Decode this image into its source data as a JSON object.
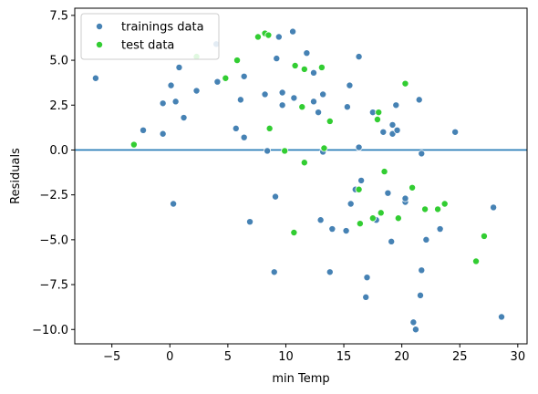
{
  "chart_data": {
    "type": "scatter",
    "xlabel": "min Temp",
    "ylabel": "Residuals",
    "xlim": [
      -8.2,
      30.8
    ],
    "ylim": [
      -10.8,
      7.9
    ],
    "xticks": [
      -5,
      0,
      5,
      10,
      15,
      20,
      25,
      30
    ],
    "yticks": [
      -10.0,
      -7.5,
      -5.0,
      -2.5,
      0.0,
      2.5,
      5.0,
      7.5
    ],
    "ytick_labels": [
      "−10.0",
      "−7.5",
      "−5.0",
      "−2.5",
      "0.0",
      "2.5",
      "5.0",
      "7.5"
    ],
    "xtick_labels": [
      "−5",
      "0",
      "5",
      "10",
      "15",
      "20",
      "25",
      "30"
    ],
    "reference_line": {
      "y": 0,
      "color": "#1f77b4"
    },
    "legend_position": "upper-left",
    "series": [
      {
        "name": "trainings data",
        "color": "#4682b4",
        "points": [
          [
            -6.4,
            4.0
          ],
          [
            -2.3,
            1.1
          ],
          [
            -0.6,
            2.6
          ],
          [
            -0.6,
            0.9
          ],
          [
            0.1,
            3.6
          ],
          [
            0.3,
            -3.0
          ],
          [
            0.5,
            2.7
          ],
          [
            0.8,
            4.6
          ],
          [
            1.2,
            1.8
          ],
          [
            2.3,
            3.3
          ],
          [
            4.0,
            5.9
          ],
          [
            4.1,
            3.8
          ],
          [
            5.7,
            1.2
          ],
          [
            6.1,
            2.8
          ],
          [
            6.4,
            0.7
          ],
          [
            6.4,
            4.1
          ],
          [
            6.9,
            -4.0
          ],
          [
            8.2,
            3.1
          ],
          [
            8.4,
            -0.05
          ],
          [
            9.0,
            -6.8
          ],
          [
            9.1,
            -2.6
          ],
          [
            9.2,
            5.1
          ],
          [
            9.4,
            6.3
          ],
          [
            9.7,
            3.2
          ],
          [
            9.7,
            2.5
          ],
          [
            10.6,
            6.6
          ],
          [
            10.7,
            2.9
          ],
          [
            11.8,
            5.4
          ],
          [
            12.4,
            4.3
          ],
          [
            12.4,
            2.7
          ],
          [
            12.8,
            2.1
          ],
          [
            13.0,
            -3.9
          ],
          [
            13.2,
            3.1
          ],
          [
            13.2,
            -0.1
          ],
          [
            13.8,
            -6.8
          ],
          [
            14.0,
            -4.4
          ],
          [
            15.2,
            -4.5
          ],
          [
            15.3,
            2.4
          ],
          [
            15.5,
            3.6
          ],
          [
            15.6,
            -3.0
          ],
          [
            16.0,
            -2.2
          ],
          [
            16.3,
            5.2
          ],
          [
            16.3,
            0.15
          ],
          [
            16.5,
            -1.7
          ],
          [
            16.9,
            -8.2
          ],
          [
            17.0,
            -7.1
          ],
          [
            17.5,
            2.1
          ],
          [
            17.8,
            -3.9
          ],
          [
            18.4,
            1.0
          ],
          [
            18.8,
            -2.4
          ],
          [
            19.1,
            -5.1
          ],
          [
            19.2,
            1.4
          ],
          [
            19.2,
            0.9
          ],
          [
            19.5,
            2.5
          ],
          [
            19.6,
            1.1
          ],
          [
            20.3,
            -2.9
          ],
          [
            20.3,
            -2.7
          ],
          [
            21.0,
            -9.6
          ],
          [
            21.2,
            -10.0
          ],
          [
            21.5,
            2.8
          ],
          [
            21.6,
            -8.1
          ],
          [
            21.7,
            -0.2
          ],
          [
            21.7,
            -6.7
          ],
          [
            22.1,
            -5.0
          ],
          [
            23.3,
            -4.4
          ],
          [
            24.6,
            1.0
          ],
          [
            27.9,
            -3.2
          ],
          [
            28.6,
            -9.3
          ]
        ]
      },
      {
        "name": "test data",
        "color": "#32cd32",
        "points": [
          [
            -3.1,
            0.3
          ],
          [
            2.3,
            5.2
          ],
          [
            4.8,
            4.0
          ],
          [
            5.8,
            5.0
          ],
          [
            7.6,
            6.3
          ],
          [
            8.2,
            6.5
          ],
          [
            8.5,
            6.4
          ],
          [
            8.6,
            1.2
          ],
          [
            9.9,
            -0.05
          ],
          [
            10.7,
            -4.6
          ],
          [
            10.8,
            4.7
          ],
          [
            11.4,
            2.4
          ],
          [
            11.6,
            4.5
          ],
          [
            11.6,
            -0.7
          ],
          [
            13.1,
            4.6
          ],
          [
            13.3,
            0.1
          ],
          [
            13.8,
            1.6
          ],
          [
            16.3,
            -2.2
          ],
          [
            16.4,
            -4.1
          ],
          [
            17.5,
            -3.8
          ],
          [
            17.9,
            1.7
          ],
          [
            18.0,
            2.1
          ],
          [
            18.2,
            -3.5
          ],
          [
            18.5,
            -1.2
          ],
          [
            19.7,
            -3.8
          ],
          [
            20.3,
            3.7
          ],
          [
            20.9,
            -2.1
          ],
          [
            22.0,
            -3.3
          ],
          [
            23.1,
            -3.3
          ],
          [
            23.7,
            -3.0
          ],
          [
            26.4,
            -6.2
          ],
          [
            27.1,
            -4.8
          ]
        ]
      }
    ]
  }
}
